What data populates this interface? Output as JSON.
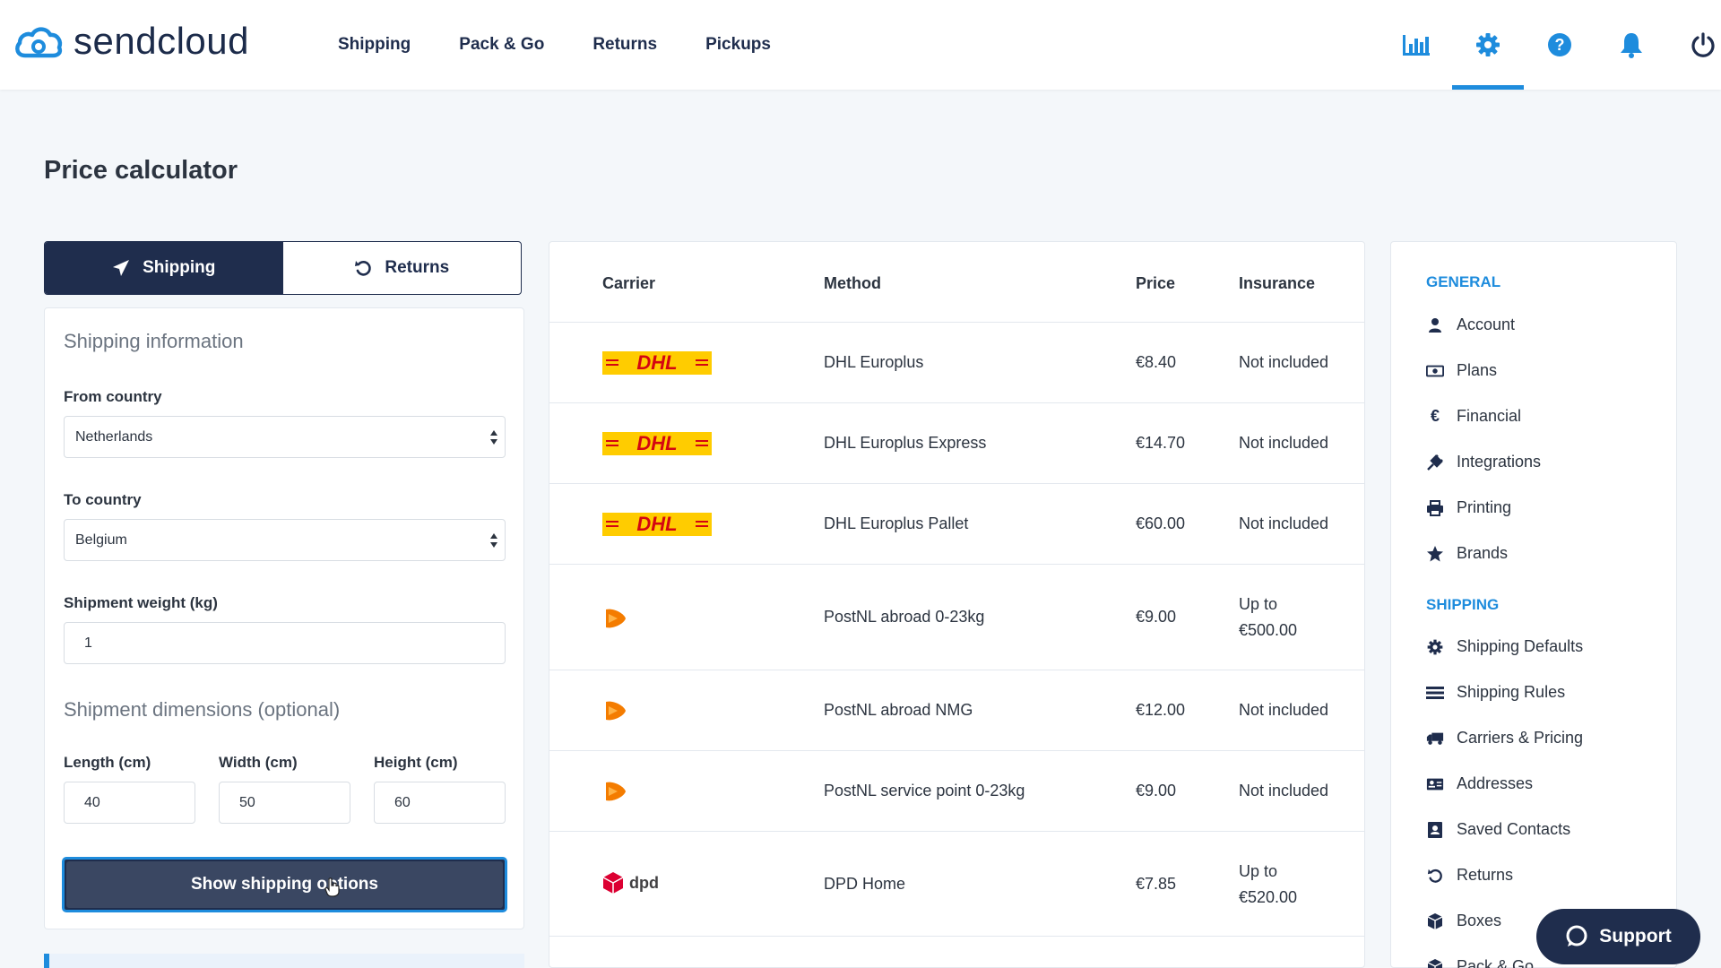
{
  "app": {
    "logo_text": "sendcloud",
    "brand_color": "#1e8cdd",
    "navy": "#1f2d4d"
  },
  "nav": [
    {
      "label": "Shipping"
    },
    {
      "label": "Pack & Go"
    },
    {
      "label": "Returns"
    },
    {
      "label": "Pickups"
    }
  ],
  "top_icons": [
    "analytics-icon",
    "gear-icon",
    "help-icon",
    "bell-icon",
    "power-icon"
  ],
  "page": {
    "title": "Price calculator"
  },
  "toggle": {
    "shipping": "Shipping",
    "returns": "Returns",
    "active": "shipping"
  },
  "form": {
    "section_info": "Shipping information",
    "from_label": "From country",
    "from_value": "Netherlands",
    "to_label": "To country",
    "to_value": "Belgium",
    "weight_label": "Shipment weight (kg)",
    "weight_value": "1",
    "section_dims": "Shipment dimensions (optional)",
    "length_label": "Length (cm)",
    "length_value": "40",
    "width_label": "Width (cm)",
    "width_value": "50",
    "height_label": "Height (cm)",
    "height_value": "60",
    "submit_label": "Show shipping options"
  },
  "table": {
    "headers": {
      "carrier": "Carrier",
      "method": "Method",
      "price": "Price",
      "insurance": "Insurance"
    },
    "rows": [
      {
        "carrier": "DHL",
        "method": "DHL Europlus",
        "price": "€8.40",
        "insurance": "Not included",
        "insurance2": ""
      },
      {
        "carrier": "DHL",
        "method": "DHL Europlus Express",
        "price": "€14.70",
        "insurance": "Not included",
        "insurance2": ""
      },
      {
        "carrier": "DHL",
        "method": "DHL Europlus Pallet",
        "price": "€60.00",
        "insurance": "Not included",
        "insurance2": ""
      },
      {
        "carrier": "PostNL",
        "method": "PostNL abroad 0-23kg",
        "price": "€9.00",
        "insurance": "Up to",
        "insurance2": "€500.00"
      },
      {
        "carrier": "PostNL",
        "method": "PostNL abroad NMG",
        "price": "€12.00",
        "insurance": "Not included",
        "insurance2": ""
      },
      {
        "carrier": "PostNL",
        "method": "PostNL service point 0-23kg",
        "price": "€9.00",
        "insurance": "Not included",
        "insurance2": ""
      },
      {
        "carrier": "dpd",
        "method": "DPD Home",
        "price": "€7.85",
        "insurance": "Up to",
        "insurance2": "€520.00"
      }
    ]
  },
  "sidebar": {
    "general_heading": "GENERAL",
    "general_items": [
      {
        "label": "Account",
        "icon": "user-icon"
      },
      {
        "label": "Plans",
        "icon": "money-icon"
      },
      {
        "label": "Financial",
        "icon": "euro-icon"
      },
      {
        "label": "Integrations",
        "icon": "plug-icon"
      },
      {
        "label": "Printing",
        "icon": "printer-icon"
      },
      {
        "label": "Brands",
        "icon": "star-icon"
      }
    ],
    "shipping_heading": "SHIPPING",
    "shipping_items": [
      {
        "label": "Shipping Defaults",
        "icon": "gear-icon"
      },
      {
        "label": "Shipping Rules",
        "icon": "rules-icon"
      },
      {
        "label": "Carriers & Pricing",
        "icon": "truck-icon"
      },
      {
        "label": "Addresses",
        "icon": "address-card-icon"
      },
      {
        "label": "Saved Contacts",
        "icon": "contact-book-icon"
      },
      {
        "label": "Returns",
        "icon": "undo-icon"
      },
      {
        "label": "Boxes",
        "icon": "box-icon"
      },
      {
        "label": "Pack & Go",
        "icon": "box-icon"
      }
    ]
  },
  "support": {
    "label": "Support"
  }
}
